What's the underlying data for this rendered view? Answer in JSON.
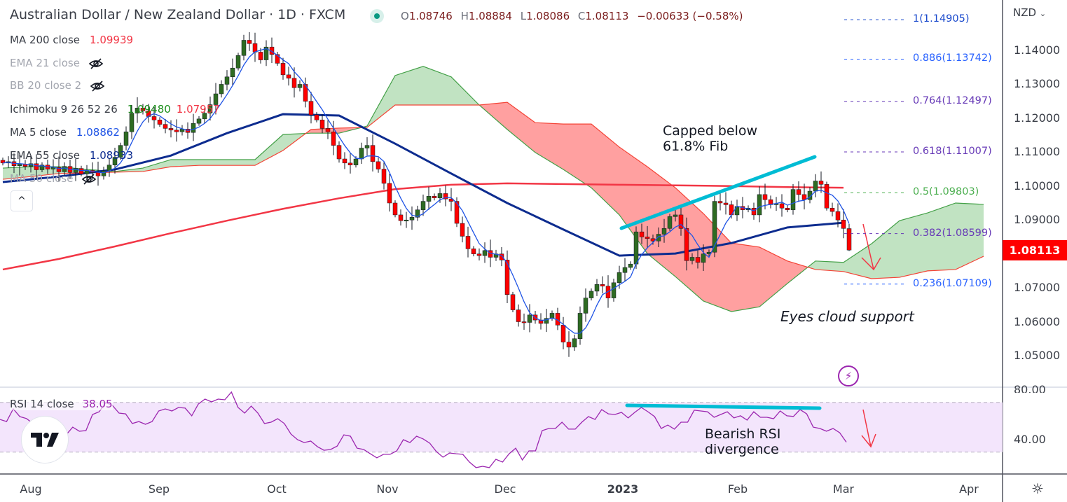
{
  "header": {
    "title": "Australian Dollar / New Zealand Dollar · 1D · FXCM",
    "open_label": "O",
    "open": "1.08746",
    "high_label": "H",
    "high": "1.08884",
    "low_label": "L",
    "low": "1.08086",
    "close_label": "C",
    "close": "1.08113",
    "change": "−0.00633 (−0.58%)",
    "market_status_color": "#089981"
  },
  "legend": [
    {
      "label": "MA 200 close",
      "value": "1.09939",
      "color": "#f23645",
      "hidden": false
    },
    {
      "label": "EMA 21 close",
      "hidden": true
    },
    {
      "label": "BB 20 close 2",
      "hidden": true
    },
    {
      "label": "Ichimoku 9 26 52 26",
      "value": "1.09480",
      "value2": "1.07957",
      "color": "#1b8f1b",
      "color2": "#f23645",
      "hidden": false
    },
    {
      "label": "MA 5 close",
      "value": "1.08862",
      "color": "#1e53e5",
      "hidden": false
    },
    {
      "label": "EMA 55 close",
      "value": "1.08933",
      "color": "#0d2c8f",
      "hidden": false
    },
    {
      "label": "MA 50 close",
      "hidden": true
    }
  ],
  "collapse_label": "^",
  "fib_levels": [
    {
      "label": "1(1.14905)",
      "price": 1.14905,
      "color": "#1848cc"
    },
    {
      "label": "0.886(1.13742)",
      "price": 1.13742,
      "color": "#2962ff"
    },
    {
      "label": "0.764(1.12497)",
      "price": 1.12497,
      "color": "#673ab7"
    },
    {
      "label": "0.618(1.11007)",
      "price": 1.11007,
      "color": "#673ab7"
    },
    {
      "label": "0.5(1.09803)",
      "price": 1.09803,
      "color": "#4caf50"
    },
    {
      "label": "0.382(1.08599)",
      "price": 1.08599,
      "color": "#673ab7"
    },
    {
      "label": "0.236(1.07109)",
      "price": 1.07109,
      "color": "#2962ff"
    }
  ],
  "price_axis": {
    "currency": "NZD",
    "ticks": [
      "1.14000",
      "1.13000",
      "1.12000",
      "1.11000",
      "1.10000",
      "1.09000",
      "1.07000",
      "1.06000",
      "1.05000"
    ],
    "tick_values": [
      1.14,
      1.13,
      1.12,
      1.11,
      1.1,
      1.09,
      1.07,
      1.06,
      1.05
    ],
    "current_price": "1.08113",
    "current_price_value": 1.08113
  },
  "rsi_panel": {
    "label": "RSI 14 close",
    "value": "38.05",
    "ticks": [
      "80.00",
      "40.00"
    ],
    "tick_values": [
      80,
      40
    ],
    "band": [
      30,
      70
    ],
    "line_color": "#9c27b0"
  },
  "time_axis": [
    "Aug",
    "Sep",
    "Oct",
    "Nov",
    "Dec",
    "2023",
    "Feb",
    "Mar",
    "Apr"
  ],
  "annotations": {
    "capped_line1": "Capped below",
    "capped_line2": "61.8% Fib",
    "cloud_note": "Eyes cloud support",
    "rsi_line1": "Bearish RSI",
    "rsi_line2": "divergence",
    "trendline_color": "#00bcd4",
    "arrow_color": "#f23645"
  },
  "chart_data": {
    "type": "candlestick",
    "symbol": "AUD/NZD",
    "timeframe": "1D",
    "ylim": [
      1.0415,
      1.1545
    ],
    "closes": [
      1.1068,
      1.1072,
      1.106,
      1.1065,
      1.1058,
      1.1066,
      1.1048,
      1.1062,
      1.105,
      1.1055,
      1.1042,
      1.1058,
      1.104,
      1.1052,
      1.1036,
      1.1046,
      1.104,
      1.103,
      1.1045,
      1.1062,
      1.1085,
      1.112,
      1.116,
      1.1215,
      1.123,
      1.1222,
      1.1205,
      1.1195,
      1.1182,
      1.117,
      1.1165,
      1.116,
      1.1168,
      1.1158,
      1.1185,
      1.1198,
      1.1215,
      1.124,
      1.1272,
      1.13,
      1.1322,
      1.1348,
      1.1385,
      1.143,
      1.142,
      1.1395,
      1.1372,
      1.141,
      1.1388,
      1.1362,
      1.1328,
      1.1318,
      1.129,
      1.13,
      1.125,
      1.121,
      1.1195,
      1.117,
      1.116,
      1.112,
      1.108,
      1.1068,
      1.1062,
      1.108,
      1.1112,
      1.112,
      1.1072,
      1.105,
      1.1008,
      1.095,
      1.0915,
      1.0898,
      1.09,
      1.0908,
      1.093,
      1.0955,
      1.097,
      1.0965,
      1.0978,
      1.0962,
      1.0955,
      1.089,
      1.0852,
      1.0815,
      1.08,
      1.0795,
      1.081,
      1.079,
      1.08,
      1.0782,
      1.068,
      1.0635,
      1.06,
      1.0598,
      1.062,
      1.0605,
      1.0595,
      1.061,
      1.0625,
      1.059,
      1.054,
      1.0525,
      1.055,
      1.0625,
      1.067,
      1.069,
      1.071,
      1.0705,
      1.067,
      1.0715,
      1.0745,
      1.076,
      1.077,
      1.0865,
      1.085,
      1.0845,
      1.0838,
      1.0858,
      1.0875,
      1.091,
      1.0915,
      1.0875,
      1.078,
      1.079,
      1.0775,
      1.08,
      1.0805,
      1.0955,
      1.095,
      1.0945,
      1.0915,
      1.094,
      1.093,
      1.0935,
      1.0915,
      1.0975,
      1.096,
      1.0945,
      1.0948,
      1.0935,
      1.093,
      1.099,
      1.0975,
      1.096,
      1.0985,
      1.1015,
      1.1005,
      1.0935,
      1.0925,
      1.09,
      1.0875,
      1.0811
    ],
    "ema55_every_10_bars": [
      1.1012,
      1.1028,
      1.1049,
      1.109,
      1.1156,
      1.1212,
      1.1208,
      1.1125,
      1.1037,
      1.095,
      1.0872,
      1.0795,
      1.0801,
      1.0832,
      1.0878,
      1.0892
    ],
    "ma200_every_10_bars": [
      1.0754,
      1.0785,
      1.0822,
      1.0861,
      1.0898,
      1.0933,
      1.0964,
      1.0991,
      1.1004,
      1.1008,
      1.1006,
      1.1004,
      1.1002,
      1.1,
      1.0997,
      1.0995
    ],
    "ichimoku_span_a_every_5_bars": [
      1.1053,
      1.1057,
      1.1057,
      1.1049,
      1.1043,
      1.1053,
      1.1078,
      1.1078,
      1.1078,
      1.1078,
      1.1152,
      1.1156,
      1.1156,
      1.1177,
      1.1326,
      1.1353,
      1.1322,
      1.1239,
      1.1167,
      1.1099,
      1.1049,
      1.0995,
      1.0915,
      1.0801,
      1.0733,
      1.0661,
      1.063,
      1.0644,
      1.0713,
      1.0779,
      1.0775,
      1.083,
      1.0898,
      1.0921,
      1.095,
      1.0946
    ],
    "ichimoku_span_b_every_5_bars": [
      1.102,
      1.1028,
      1.1037,
      1.1039,
      1.1041,
      1.1043,
      1.1057,
      1.1061,
      1.1061,
      1.1061,
      1.1105,
      1.1167,
      1.1171,
      1.1173,
      1.1239,
      1.1239,
      1.1239,
      1.1239,
      1.1247,
      1.1187,
      1.1183,
      1.1183,
      1.1115,
      1.1057,
      1.0995,
      1.0919,
      1.0832,
      1.082,
      1.0779,
      1.0754,
      1.0748,
      1.0727,
      1.0731,
      1.075,
      1.0754,
      1.0793
    ],
    "rsi": [
      56.3,
      54.6,
      64.8,
      58.6,
      57,
      53,
      50,
      52,
      55.8,
      50.1,
      43.9,
      50.1,
      46.8,
      47.3,
      60.3,
      62.5,
      69.9,
      67.6,
      61.4,
      60.8,
      53.0,
      54.6,
      52.4,
      54.6,
      63.1,
      64.8,
      63.1,
      65.9,
      65.4,
      59.2,
      68.7,
      72.7,
      70.4,
      72.7,
      72.1,
      78.3,
      65.9,
      61.4,
      67.0,
      61.4,
      53.0,
      54.1,
      56.9,
      53.0,
      44.5,
      40.0,
      37.7,
      38.9,
      34.4,
      31.5,
      32.1,
      34.9,
      43.9,
      42.8,
      33.2,
      32.1,
      28.7,
      25.4,
      28.2,
      28.2,
      31.0,
      40.0,
      37.7,
      42.8,
      40.6,
      37.2,
      30.4,
      25.9,
      29.3,
      28.7,
      28.2,
      22.0,
      17.5,
      18.6,
      17.5,
      24.2,
      22.0,
      28.7,
      33.2,
      23.7,
      31.0,
      31.0,
      47.3,
      49.0,
      49.0,
      54.1,
      48.5,
      48.5,
      54.1,
      58.6,
      56.3,
      64.2,
      60.8,
      60.3,
      62.0,
      57.5,
      62.0,
      65.9,
      62.5,
      58.6,
      49.0,
      51.8,
      48.5,
      54.1,
      54.1,
      63.7,
      63.1,
      62.5,
      58.0,
      60.3,
      62.5,
      57.5,
      59.2,
      55.8,
      62.5,
      58.0,
      58.0,
      56.9,
      63.1,
      59.2,
      58.7,
      64.2,
      60.8,
      50.1,
      49.0,
      46.8,
      49.0,
      45.6,
      38.05
    ],
    "up_color": "#2e6b22",
    "down_color": "#ff0000",
    "cloud_up_color": "#4caf50",
    "cloud_down_color": "#ff5252"
  }
}
